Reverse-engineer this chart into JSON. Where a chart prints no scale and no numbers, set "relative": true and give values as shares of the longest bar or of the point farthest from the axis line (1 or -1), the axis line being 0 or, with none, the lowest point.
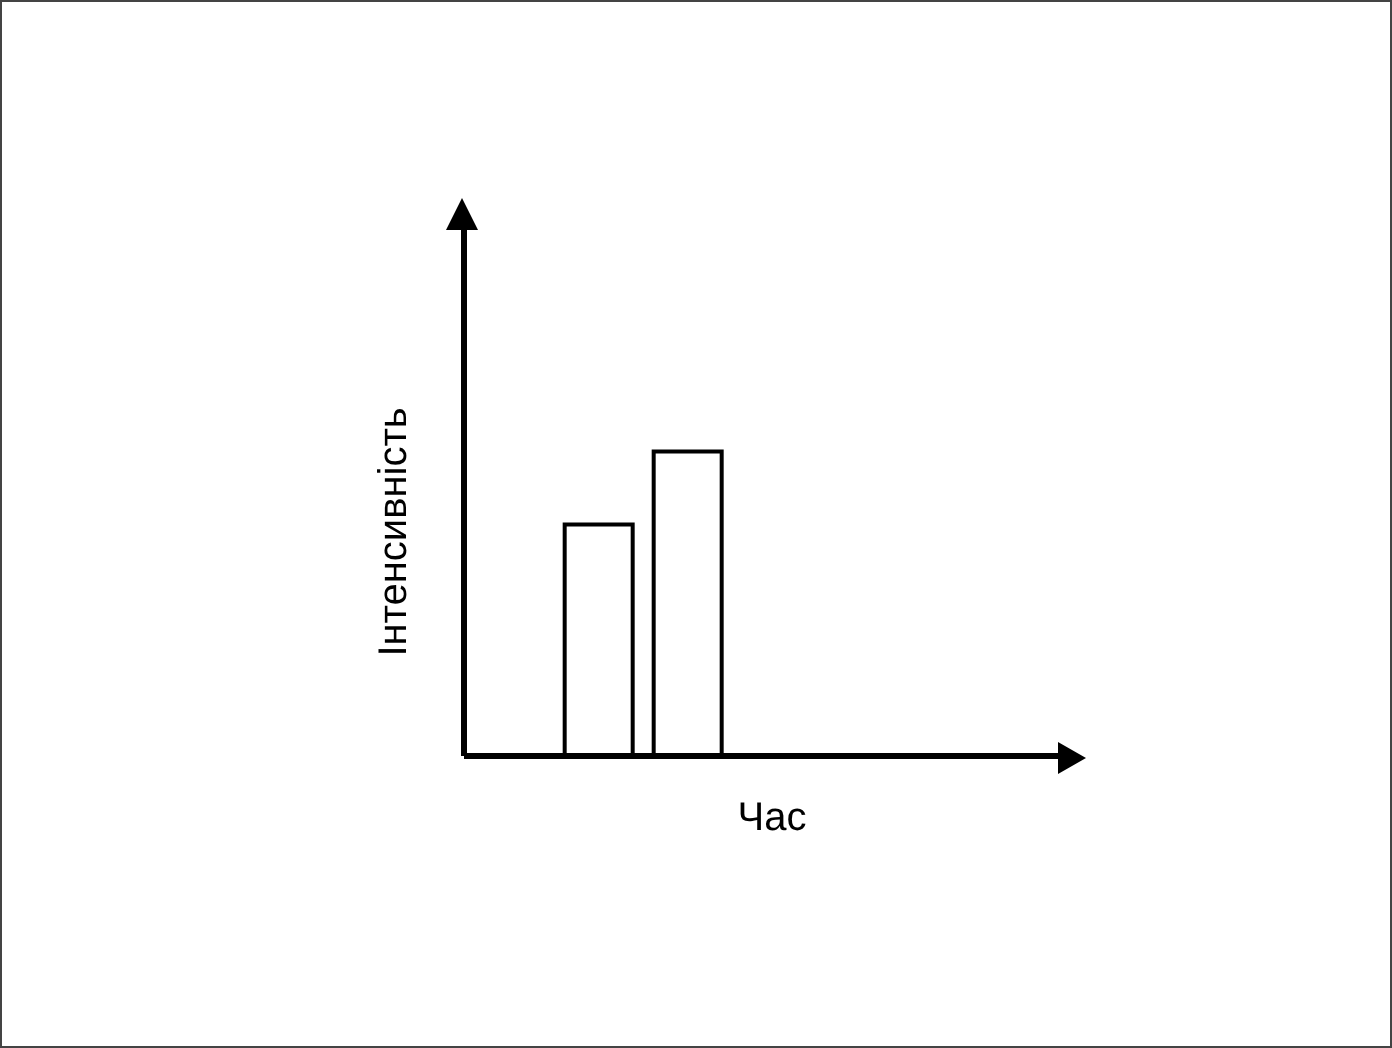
{
  "chart_data": {
    "type": "bar",
    "relative": true,
    "xlabel": "Час",
    "ylabel": "Інтенсивність",
    "color": "#ffffff",
    "categories": [
      null,
      null
    ],
    "values": [
      0.76,
      1
    ]
  }
}
